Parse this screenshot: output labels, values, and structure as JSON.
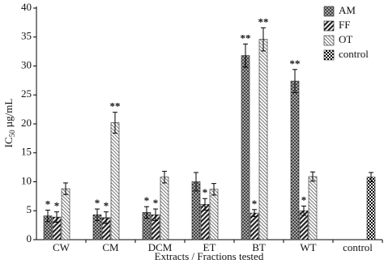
{
  "chart_data": {
    "type": "bar",
    "y_label": {
      "main": "IC",
      "sub": "50",
      "unit": "µg/mL"
    },
    "x_label": "Extracts / Fractions tested",
    "categories": [
      "CW",
      "CM",
      "DCM",
      "ET",
      "BT",
      "WT",
      "control"
    ],
    "series": [
      {
        "name": "AM",
        "color": "#222222",
        "pattern": "crosshatch",
        "values": [
          4.1,
          4.3,
          4.7,
          10.0,
          31.8,
          27.4,
          null
        ],
        "errors": [
          1.0,
          1.0,
          1.0,
          1.6,
          2.0,
          2.0,
          null
        ],
        "significance": [
          "*",
          "*",
          "*",
          null,
          "**",
          "**",
          null
        ]
      },
      {
        "name": "FF",
        "color": "#222222",
        "pattern": "diagonal",
        "values": [
          3.9,
          3.8,
          4.3,
          6.1,
          4.6,
          5.0,
          null
        ],
        "errors": [
          0.9,
          1.0,
          1.0,
          1.0,
          0.6,
          0.8,
          null
        ],
        "significance": [
          "*",
          "*",
          "*",
          "*",
          "*",
          "*",
          null
        ]
      },
      {
        "name": "OT",
        "color": "#222222",
        "pattern": "lightdiagonal",
        "values": [
          8.8,
          20.2,
          10.8,
          8.7,
          34.6,
          10.9,
          null
        ],
        "errors": [
          1.0,
          1.8,
          1.0,
          1.0,
          2.0,
          0.8,
          null
        ],
        "significance": [
          null,
          "**",
          null,
          null,
          "**",
          null,
          null
        ]
      },
      {
        "name": "control",
        "color": "#222222",
        "pattern": "checker",
        "values": [
          null,
          null,
          null,
          null,
          null,
          null,
          10.8
        ],
        "errors": [
          null,
          null,
          null,
          null,
          null,
          null,
          0.8
        ],
        "significance": [
          null,
          null,
          null,
          null,
          null,
          null,
          null
        ]
      }
    ],
    "ylim": [
      0,
      40
    ],
    "yticks": [
      0,
      5,
      10,
      15,
      20,
      25,
      30,
      35,
      40
    ],
    "legend": "top-right"
  }
}
